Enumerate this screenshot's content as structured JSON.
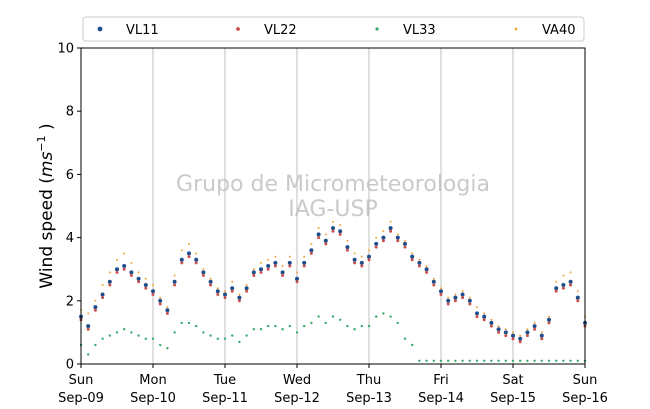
{
  "chart_data": {
    "type": "scatter",
    "title": "",
    "ylabel": "Wind speed (ms⁻¹ )",
    "ylabel_parts": {
      "main": "Wind speed (",
      "var": "ms",
      "sup": "−1",
      "close": " )"
    },
    "xlabel": "",
    "ylim": [
      0,
      10
    ],
    "yticks": [
      0,
      2,
      4,
      6,
      8,
      10
    ],
    "xlim": [
      0,
      7
    ],
    "xticks": [
      {
        "x": 0,
        "day": "Sun",
        "date": "Sep-09"
      },
      {
        "x": 1,
        "day": "Mon",
        "date": "Sep-10"
      },
      {
        "x": 2,
        "day": "Tue",
        "date": "Sep-11"
      },
      {
        "x": 3,
        "day": "Wed",
        "date": "Sep-12"
      },
      {
        "x": 4,
        "day": "Thu",
        "date": "Sep-13"
      },
      {
        "x": 5,
        "day": "Fri",
        "date": "Sep-14"
      },
      {
        "x": 6,
        "day": "Sat",
        "date": "Sep-15"
      },
      {
        "x": 7,
        "day": "Sun",
        "date": "Sep-16"
      }
    ],
    "grid": "vertical",
    "legend_position": "top",
    "watermark": [
      "Grupo de Micrometeorologia",
      "IAG-USP"
    ],
    "series": [
      {
        "name": "VL11",
        "color": "#1f4e8c",
        "marker_size": 2.0,
        "x": [
          0.0,
          0.1,
          0.2,
          0.3,
          0.4,
          0.5,
          0.6,
          0.7,
          0.8,
          0.9,
          1.0,
          1.1,
          1.2,
          1.3,
          1.4,
          1.5,
          1.6,
          1.7,
          1.8,
          1.9,
          2.0,
          2.1,
          2.2,
          2.3,
          2.4,
          2.5,
          2.6,
          2.7,
          2.8,
          2.9,
          3.0,
          3.1,
          3.2,
          3.3,
          3.4,
          3.5,
          3.6,
          3.7,
          3.8,
          3.9,
          4.0,
          4.1,
          4.2,
          4.3,
          4.4,
          4.5,
          4.6,
          4.7,
          4.8,
          4.9,
          5.0,
          5.1,
          5.2,
          5.3,
          5.4,
          5.5,
          5.6,
          5.7,
          5.8,
          5.9,
          6.0,
          6.1,
          6.2,
          6.3,
          6.4,
          6.5,
          6.6,
          6.7,
          6.8,
          6.9,
          7.0
        ],
        "y": [
          1.5,
          1.2,
          1.8,
          2.2,
          2.6,
          3.0,
          3.1,
          2.9,
          2.7,
          2.5,
          2.3,
          2.0,
          1.7,
          2.6,
          3.3,
          3.5,
          3.3,
          2.9,
          2.6,
          2.3,
          2.2,
          2.4,
          2.1,
          2.4,
          2.9,
          3.0,
          3.1,
          3.2,
          2.9,
          3.2,
          2.7,
          3.2,
          3.6,
          4.1,
          3.9,
          4.3,
          4.2,
          3.7,
          3.3,
          3.2,
          3.4,
          3.8,
          4.0,
          4.3,
          4.0,
          3.8,
          3.4,
          3.2,
          3.0,
          2.6,
          2.3,
          2.0,
          2.1,
          2.2,
          2.0,
          1.6,
          1.5,
          1.3,
          1.1,
          1.0,
          0.9,
          0.8,
          1.0,
          1.2,
          0.9,
          1.4,
          2.4,
          2.5,
          2.6,
          2.1,
          1.3
        ]
      },
      {
        "name": "VL22",
        "color": "#c9504b",
        "marker_size": 1.5,
        "x": [
          0.0,
          0.1,
          0.2,
          0.3,
          0.4,
          0.5,
          0.6,
          0.7,
          0.8,
          0.9,
          1.0,
          1.1,
          1.2,
          1.3,
          1.4,
          1.5,
          1.6,
          1.7,
          1.8,
          1.9,
          2.0,
          2.1,
          2.2,
          2.3,
          2.4,
          2.5,
          2.6,
          2.7,
          2.8,
          2.9,
          3.0,
          3.1,
          3.2,
          3.3,
          3.4,
          3.5,
          3.6,
          3.7,
          3.8,
          3.9,
          4.0,
          4.1,
          4.2,
          4.3,
          4.4,
          4.5,
          4.6,
          4.7,
          4.8,
          4.9,
          5.0,
          5.1,
          5.2,
          5.3,
          5.4,
          5.5,
          5.6,
          5.7,
          5.8,
          5.9,
          6.0,
          6.1,
          6.2,
          6.3,
          6.4,
          6.5,
          6.6,
          6.7,
          6.8,
          6.9,
          7.0
        ],
        "y": [
          1.4,
          1.1,
          1.7,
          2.1,
          2.5,
          2.9,
          3.0,
          2.8,
          2.6,
          2.4,
          2.2,
          1.9,
          1.6,
          2.5,
          3.2,
          3.4,
          3.2,
          2.8,
          2.5,
          2.2,
          2.1,
          2.3,
          2.0,
          2.3,
          2.8,
          2.9,
          3.0,
          3.1,
          2.8,
          3.1,
          2.6,
          3.1,
          3.5,
          4.0,
          3.8,
          4.2,
          4.1,
          3.6,
          3.2,
          3.1,
          3.3,
          3.7,
          3.9,
          4.2,
          3.9,
          3.7,
          3.3,
          3.1,
          2.9,
          2.5,
          2.2,
          1.9,
          2.0,
          2.1,
          1.9,
          1.5,
          1.4,
          1.2,
          1.0,
          0.9,
          0.8,
          0.7,
          0.9,
          1.1,
          0.8,
          1.3,
          2.3,
          2.4,
          2.5,
          2.0,
          1.2
        ]
      },
      {
        "name": "VL33",
        "color": "#3aaa6a",
        "marker_size": 1.2,
        "x": [
          0.0,
          0.1,
          0.2,
          0.3,
          0.4,
          0.5,
          0.6,
          0.7,
          0.8,
          0.9,
          1.0,
          1.1,
          1.2,
          1.3,
          1.4,
          1.5,
          1.6,
          1.7,
          1.8,
          1.9,
          2.0,
          2.1,
          2.2,
          2.3,
          2.4,
          2.5,
          2.6,
          2.7,
          2.8,
          2.9,
          3.0,
          3.1,
          3.2,
          3.3,
          3.4,
          3.5,
          3.6,
          3.7,
          3.8,
          3.9,
          4.0,
          4.1,
          4.2,
          4.3,
          4.4,
          4.5,
          4.6,
          4.7,
          4.8,
          4.9,
          5.0,
          5.1,
          5.2,
          5.3,
          5.4,
          5.5,
          5.6,
          5.7,
          5.8,
          5.9,
          6.0,
          6.1,
          6.2,
          6.3,
          6.4,
          6.5,
          6.6,
          6.7,
          6.8,
          6.9,
          7.0
        ],
        "y": [
          0.6,
          0.3,
          0.6,
          0.8,
          0.9,
          1.0,
          1.1,
          1.0,
          0.9,
          0.8,
          0.8,
          0.6,
          0.5,
          1.0,
          1.3,
          1.3,
          1.2,
          1.0,
          0.9,
          0.8,
          0.8,
          0.9,
          0.7,
          0.9,
          1.1,
          1.1,
          1.2,
          1.2,
          1.1,
          1.2,
          1.0,
          1.2,
          1.3,
          1.5,
          1.3,
          1.5,
          1.4,
          1.2,
          1.1,
          1.2,
          1.2,
          1.5,
          1.6,
          1.5,
          1.3,
          0.8,
          0.6,
          0.1,
          0.1,
          0.1,
          0.1,
          0.1,
          0.1,
          0.1,
          0.1,
          0.1,
          0.1,
          0.1,
          0.1,
          0.1,
          0.1,
          0.1,
          0.1,
          0.1,
          0.1,
          0.1,
          0.1,
          0.1,
          0.1,
          0.1,
          0.1
        ]
      },
      {
        "name": "VA40",
        "color": "#f5a23c",
        "marker_size": 1.0,
        "x": [
          0.0,
          0.1,
          0.2,
          0.3,
          0.4,
          0.5,
          0.6,
          0.7,
          0.8,
          0.9,
          1.0,
          1.1,
          1.2,
          1.3,
          1.4,
          1.5,
          1.6,
          1.7,
          1.8,
          1.9,
          2.0,
          2.1,
          2.2,
          2.3,
          2.4,
          2.5,
          2.6,
          2.7,
          2.8,
          2.9,
          3.0,
          3.1,
          3.2,
          3.3,
          3.4,
          3.5,
          3.6,
          3.7,
          3.8,
          3.9,
          4.0,
          4.1,
          4.2,
          4.3,
          4.4,
          4.5,
          4.6,
          4.7,
          4.8,
          4.9,
          5.0,
          5.1,
          5.2,
          5.3,
          5.4,
          5.5,
          5.6,
          5.7,
          5.8,
          5.9,
          6.0,
          6.1,
          6.2,
          6.3,
          6.4,
          6.5,
          6.6,
          6.7,
          6.8,
          6.9,
          7.0
        ],
        "y": [
          1.7,
          1.6,
          2.0,
          2.5,
          2.9,
          3.3,
          3.5,
          3.2,
          2.9,
          2.7,
          2.5,
          2.1,
          1.8,
          2.8,
          3.6,
          3.8,
          3.5,
          3.0,
          2.7,
          2.4,
          2.3,
          2.6,
          2.2,
          2.5,
          3.0,
          3.2,
          3.3,
          3.4,
          3.1,
          3.4,
          2.9,
          3.4,
          3.8,
          4.3,
          4.1,
          4.5,
          4.4,
          3.9,
          3.5,
          3.4,
          3.6,
          4.0,
          4.2,
          4.5,
          4.1,
          3.9,
          3.5,
          3.3,
          3.1,
          2.7,
          2.4,
          2.1,
          2.2,
          2.3,
          2.1,
          1.8,
          1.6,
          1.4,
          1.2,
          1.1,
          1.0,
          0.9,
          1.1,
          1.3,
          1.0,
          1.5,
          2.6,
          2.8,
          2.9,
          2.3,
          1.5
        ]
      }
    ]
  }
}
